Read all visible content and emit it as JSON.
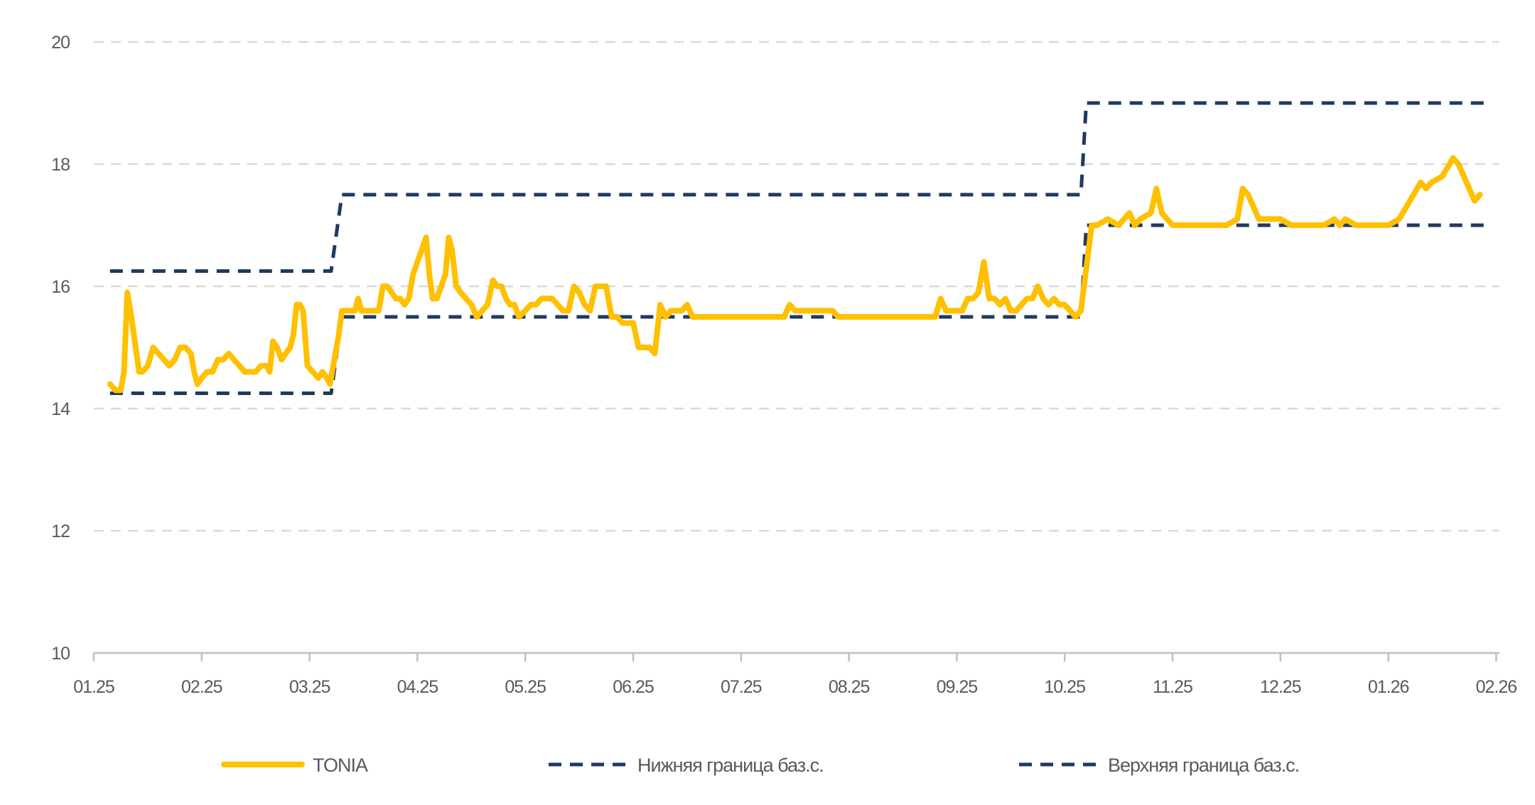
{
  "chart_data": {
    "type": "line",
    "title": "",
    "xlabel": "",
    "ylabel": "",
    "ylim": [
      10,
      20
    ],
    "yticks": [
      "10",
      "12",
      "14",
      "16",
      "18",
      "20"
    ],
    "xticks": [
      "01.25",
      "02.25",
      "03.25",
      "04.25",
      "05.25",
      "06.25",
      "07.25",
      "08.25",
      "09.25",
      "10.25",
      "11.25",
      "12.25",
      "01.26",
      "02.26"
    ],
    "grid": true,
    "legend_position": "bottom",
    "colors": {
      "tonia": "#ffc000",
      "bounds": "#1f3a5f",
      "grid": "#d9d9d9",
      "axis": "#bfbfbf",
      "text": "#595959"
    },
    "series": [
      {
        "name": "TONIA",
        "style": "solid",
        "points": [
          [
            0.15,
            14.4
          ],
          [
            0.2,
            14.3
          ],
          [
            0.25,
            14.3
          ],
          [
            0.28,
            14.6
          ],
          [
            0.31,
            15.9
          ],
          [
            0.34,
            15.6
          ],
          [
            0.38,
            15.1
          ],
          [
            0.42,
            14.6
          ],
          [
            0.45,
            14.6
          ],
          [
            0.5,
            14.7
          ],
          [
            0.55,
            15.0
          ],
          [
            0.6,
            14.9
          ],
          [
            0.65,
            14.8
          ],
          [
            0.7,
            14.7
          ],
          [
            0.75,
            14.8
          ],
          [
            0.8,
            15.0
          ],
          [
            0.85,
            15.0
          ],
          [
            0.9,
            14.9
          ],
          [
            0.93,
            14.6
          ],
          [
            0.96,
            14.4
          ],
          [
            1.0,
            14.5
          ],
          [
            1.05,
            14.6
          ],
          [
            1.1,
            14.6
          ],
          [
            1.15,
            14.8
          ],
          [
            1.2,
            14.8
          ],
          [
            1.25,
            14.9
          ],
          [
            1.3,
            14.8
          ],
          [
            1.35,
            14.7
          ],
          [
            1.4,
            14.6
          ],
          [
            1.45,
            14.6
          ],
          [
            1.5,
            14.6
          ],
          [
            1.55,
            14.7
          ],
          [
            1.6,
            14.7
          ],
          [
            1.63,
            14.6
          ],
          [
            1.66,
            15.1
          ],
          [
            1.7,
            15.0
          ],
          [
            1.74,
            14.8
          ],
          [
            1.78,
            14.9
          ],
          [
            1.82,
            15.0
          ],
          [
            1.85,
            15.2
          ],
          [
            1.88,
            15.7
          ],
          [
            1.91,
            15.7
          ],
          [
            1.94,
            15.6
          ],
          [
            1.98,
            14.7
          ],
          [
            2.03,
            14.6
          ],
          [
            2.08,
            14.5
          ],
          [
            2.12,
            14.6
          ],
          [
            2.16,
            14.5
          ],
          [
            2.19,
            14.4
          ],
          [
            2.23,
            14.8
          ],
          [
            2.27,
            15.2
          ],
          [
            2.3,
            15.6
          ],
          [
            2.34,
            15.6
          ],
          [
            2.38,
            15.6
          ],
          [
            2.42,
            15.6
          ],
          [
            2.45,
            15.8
          ],
          [
            2.48,
            15.6
          ],
          [
            2.52,
            15.6
          ],
          [
            2.56,
            15.6
          ],
          [
            2.6,
            15.6
          ],
          [
            2.64,
            15.6
          ],
          [
            2.68,
            16.0
          ],
          [
            2.72,
            16.0
          ],
          [
            2.76,
            15.9
          ],
          [
            2.8,
            15.8
          ],
          [
            2.84,
            15.8
          ],
          [
            2.88,
            15.7
          ],
          [
            2.92,
            15.8
          ],
          [
            2.96,
            16.2
          ],
          [
            3.0,
            16.4
          ],
          [
            3.04,
            16.6
          ],
          [
            3.08,
            16.8
          ],
          [
            3.11,
            16.2
          ],
          [
            3.14,
            15.8
          ],
          [
            3.18,
            15.8
          ],
          [
            3.22,
            16.0
          ],
          [
            3.26,
            16.2
          ],
          [
            3.29,
            16.8
          ],
          [
            3.32,
            16.6
          ],
          [
            3.36,
            16.0
          ],
          [
            3.4,
            15.9
          ],
          [
            3.45,
            15.8
          ],
          [
            3.5,
            15.7
          ],
          [
            3.55,
            15.5
          ],
          [
            3.6,
            15.6
          ],
          [
            3.65,
            15.7
          ],
          [
            3.7,
            16.1
          ],
          [
            3.74,
            16.0
          ],
          [
            3.78,
            16.0
          ],
          [
            3.82,
            15.8
          ],
          [
            3.86,
            15.7
          ],
          [
            3.9,
            15.7
          ],
          [
            3.94,
            15.5
          ],
          [
            4.0,
            15.6
          ],
          [
            4.05,
            15.7
          ],
          [
            4.1,
            15.7
          ],
          [
            4.15,
            15.8
          ],
          [
            4.2,
            15.8
          ],
          [
            4.25,
            15.8
          ],
          [
            4.3,
            15.7
          ],
          [
            4.35,
            15.6
          ],
          [
            4.4,
            15.6
          ],
          [
            4.45,
            16.0
          ],
          [
            4.5,
            15.9
          ],
          [
            4.55,
            15.7
          ],
          [
            4.6,
            15.6
          ],
          [
            4.65,
            16.0
          ],
          [
            4.7,
            16.0
          ],
          [
            4.75,
            16.0
          ],
          [
            4.8,
            15.5
          ],
          [
            4.85,
            15.5
          ],
          [
            4.9,
            15.4
          ],
          [
            4.95,
            15.4
          ],
          [
            5.0,
            15.4
          ],
          [
            5.05,
            15.0
          ],
          [
            5.1,
            15.0
          ],
          [
            5.15,
            15.0
          ],
          [
            5.2,
            14.9
          ],
          [
            5.25,
            15.7
          ],
          [
            5.3,
            15.5
          ],
          [
            5.35,
            15.6
          ],
          [
            5.4,
            15.6
          ],
          [
            5.45,
            15.6
          ],
          [
            5.5,
            15.7
          ],
          [
            5.55,
            15.5
          ],
          [
            5.6,
            15.5
          ],
          [
            5.7,
            15.5
          ],
          [
            5.8,
            15.5
          ],
          [
            5.9,
            15.5
          ],
          [
            6.0,
            15.5
          ],
          [
            6.1,
            15.5
          ],
          [
            6.2,
            15.5
          ],
          [
            6.3,
            15.5
          ],
          [
            6.4,
            15.5
          ],
          [
            6.45,
            15.7
          ],
          [
            6.5,
            15.6
          ],
          [
            6.6,
            15.6
          ],
          [
            6.7,
            15.6
          ],
          [
            6.8,
            15.6
          ],
          [
            6.85,
            15.6
          ],
          [
            6.9,
            15.5
          ],
          [
            7.0,
            15.5
          ],
          [
            7.1,
            15.5
          ],
          [
            7.2,
            15.5
          ],
          [
            7.3,
            15.5
          ],
          [
            7.4,
            15.5
          ],
          [
            7.5,
            15.5
          ],
          [
            7.6,
            15.5
          ],
          [
            7.7,
            15.5
          ],
          [
            7.8,
            15.5
          ],
          [
            7.85,
            15.8
          ],
          [
            7.9,
            15.6
          ],
          [
            8.0,
            15.6
          ],
          [
            8.05,
            15.6
          ],
          [
            8.1,
            15.8
          ],
          [
            8.15,
            15.8
          ],
          [
            8.2,
            15.9
          ],
          [
            8.25,
            16.4
          ],
          [
            8.3,
            15.8
          ],
          [
            8.35,
            15.8
          ],
          [
            8.4,
            15.7
          ],
          [
            8.45,
            15.8
          ],
          [
            8.5,
            15.6
          ],
          [
            8.55,
            15.6
          ],
          [
            8.6,
            15.7
          ],
          [
            8.65,
            15.8
          ],
          [
            8.7,
            15.8
          ],
          [
            8.75,
            16.0
          ],
          [
            8.8,
            15.8
          ],
          [
            8.85,
            15.7
          ],
          [
            8.9,
            15.8
          ],
          [
            8.95,
            15.7
          ],
          [
            9.0,
            15.7
          ],
          [
            9.05,
            15.6
          ],
          [
            9.1,
            15.5
          ],
          [
            9.15,
            15.6
          ],
          [
            9.2,
            16.3
          ],
          [
            9.25,
            17.0
          ],
          [
            9.3,
            17.0
          ],
          [
            9.4,
            17.1
          ],
          [
            9.5,
            17.0
          ],
          [
            9.55,
            17.1
          ],
          [
            9.6,
            17.2
          ],
          [
            9.65,
            17.0
          ],
          [
            9.7,
            17.1
          ],
          [
            9.8,
            17.2
          ],
          [
            9.85,
            17.6
          ],
          [
            9.9,
            17.2
          ],
          [
            9.95,
            17.1
          ],
          [
            10.0,
            17.0
          ],
          [
            10.1,
            17.0
          ],
          [
            10.2,
            17.0
          ],
          [
            10.3,
            17.0
          ],
          [
            10.4,
            17.0
          ],
          [
            10.5,
            17.0
          ],
          [
            10.6,
            17.1
          ],
          [
            10.65,
            17.6
          ],
          [
            10.7,
            17.5
          ],
          [
            10.8,
            17.1
          ],
          [
            10.85,
            17.1
          ],
          [
            10.9,
            17.1
          ],
          [
            11.0,
            17.1
          ],
          [
            11.1,
            17.0
          ],
          [
            11.2,
            17.0
          ],
          [
            11.3,
            17.0
          ],
          [
            11.4,
            17.0
          ],
          [
            11.5,
            17.1
          ],
          [
            11.55,
            17.0
          ],
          [
            11.6,
            17.1
          ],
          [
            11.7,
            17.0
          ],
          [
            11.8,
            17.0
          ],
          [
            11.9,
            17.0
          ],
          [
            12.0,
            17.0
          ],
          [
            12.1,
            17.1
          ],
          [
            12.2,
            17.4
          ],
          [
            12.3,
            17.7
          ],
          [
            12.35,
            17.6
          ],
          [
            12.4,
            17.7
          ],
          [
            12.5,
            17.8
          ],
          [
            12.6,
            18.1
          ],
          [
            12.65,
            18.0
          ],
          [
            12.7,
            17.8
          ],
          [
            12.75,
            17.6
          ],
          [
            12.8,
            17.4
          ],
          [
            12.85,
            17.5
          ]
        ]
      },
      {
        "name": "Нижняя граница баз.с.",
        "style": "dashed",
        "points": [
          [
            0.15,
            14.25
          ],
          [
            2.2,
            14.25
          ],
          [
            2.3,
            15.5
          ],
          [
            9.15,
            15.5
          ],
          [
            9.2,
            17.0
          ],
          [
            12.9,
            17.0
          ]
        ]
      },
      {
        "name": "Верхняя граница баз.с.",
        "style": "dashed",
        "points": [
          [
            0.15,
            16.25
          ],
          [
            2.2,
            16.25
          ],
          [
            2.3,
            17.5
          ],
          [
            9.15,
            17.5
          ],
          [
            9.2,
            19.0
          ],
          [
            12.9,
            19.0
          ]
        ]
      }
    ]
  }
}
